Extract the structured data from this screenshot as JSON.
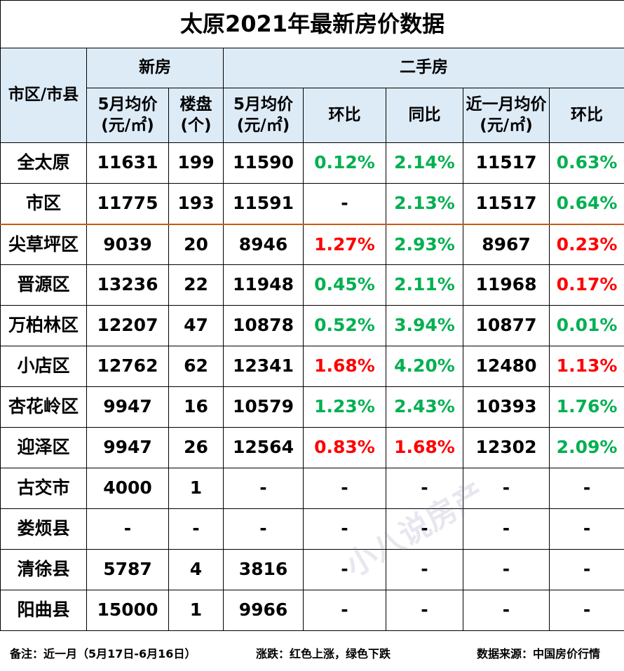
{
  "title": "太原2021年最新房价数据",
  "header": {
    "region": "市区/市县",
    "new_house": "新房",
    "second_hand": "二手房",
    "columns": [
      "5月均价(元/㎡)",
      "楼盘(个)",
      "5月均价(元/㎡)",
      "环比",
      "同比",
      "近一月均价(元/㎡)",
      "环比"
    ]
  },
  "colors": {
    "up": "#ff0000",
    "down": "#00b050"
  },
  "table": {
    "rows": [
      [
        "全太原",
        "11631",
        "199",
        "11590",
        {
          "text": "0.12%",
          "trend": "down"
        },
        {
          "text": "2.14%",
          "trend": "down"
        },
        "11517",
        {
          "text": "0.63%",
          "trend": "down"
        }
      ],
      [
        "市区",
        "11775",
        "193",
        "11591",
        "-",
        {
          "text": "2.13%",
          "trend": "down"
        },
        "11517",
        {
          "text": "0.64%",
          "trend": "down"
        }
      ],
      [
        "尖草坪区",
        "9039",
        "20",
        "8946",
        {
          "text": "1.27%",
          "trend": "up"
        },
        {
          "text": "2.93%",
          "trend": "down"
        },
        "8967",
        {
          "text": "0.23%",
          "trend": "up"
        }
      ],
      [
        "晋源区",
        "13236",
        "22",
        "11948",
        {
          "text": "0.45%",
          "trend": "down"
        },
        {
          "text": "2.11%",
          "trend": "down"
        },
        "11968",
        {
          "text": "0.17%",
          "trend": "up"
        }
      ],
      [
        "万柏林区",
        "12207",
        "47",
        "10878",
        {
          "text": "0.52%",
          "trend": "down"
        },
        {
          "text": "3.94%",
          "trend": "down"
        },
        "10877",
        {
          "text": "0.01%",
          "trend": "down"
        }
      ],
      [
        "小店区",
        "12762",
        "62",
        "12341",
        {
          "text": "1.68%",
          "trend": "up"
        },
        {
          "text": "4.20%",
          "trend": "down"
        },
        "12480",
        {
          "text": "1.13%",
          "trend": "up"
        }
      ],
      [
        "杏花岭区",
        "9947",
        "16",
        "10579",
        {
          "text": "1.23%",
          "trend": "down"
        },
        {
          "text": "2.43%",
          "trend": "down"
        },
        "10393",
        {
          "text": "1.76%",
          "trend": "down"
        }
      ],
      [
        "迎泽区",
        "9947",
        "26",
        "12564",
        {
          "text": "0.83%",
          "trend": "up"
        },
        {
          "text": "1.68%",
          "trend": "up"
        },
        "12302",
        {
          "text": "2.09%",
          "trend": "down"
        }
      ],
      [
        "古交市",
        "4000",
        "1",
        "-",
        "-",
        "-",
        "-",
        "-"
      ],
      [
        "娄烦县",
        "-",
        "-",
        "-",
        "-",
        "-",
        "-",
        "-"
      ],
      [
        "清徐县",
        "5787",
        "4",
        "3816",
        "-",
        "-",
        "-",
        "-"
      ],
      [
        "阳曲县",
        "15000",
        "1",
        "9966",
        "-",
        "-",
        "-",
        "-"
      ]
    ]
  },
  "footer": {
    "note": "备注：近一月（5月17日-6月16日）",
    "legend": "涨跌：红色上涨，绿色下跌",
    "source": "数据来源：中国房价行情"
  },
  "watermark": "小八说房产"
}
